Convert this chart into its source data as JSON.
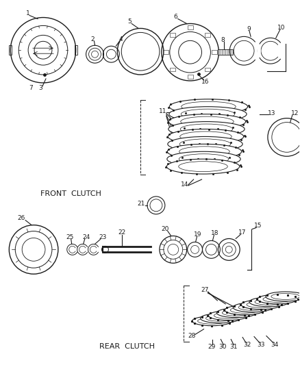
{
  "bg_color": "#ffffff",
  "lc": "#1a1a1a",
  "front_clutch_label": "FRONT  CLUTCH",
  "rear_clutch_label": "REAR  CLUTCH",
  "figsize": [
    4.38,
    5.33
  ],
  "dpi": 100
}
